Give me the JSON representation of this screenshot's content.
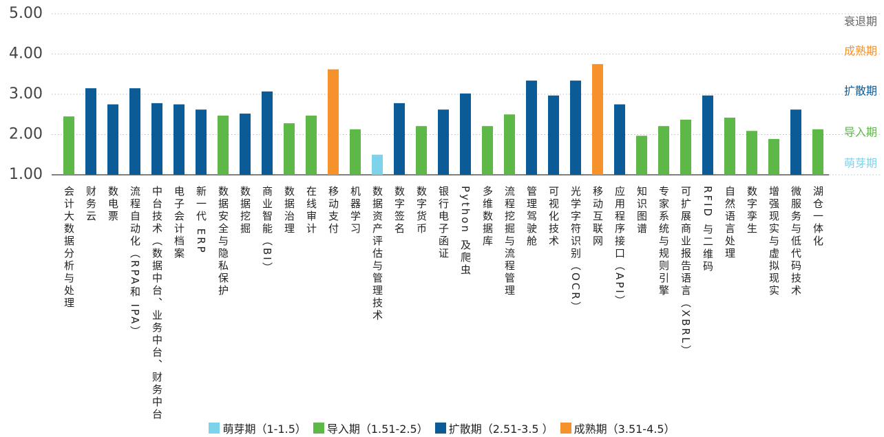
{
  "chart_data": {
    "type": "bar",
    "categories": [
      "会计大数据分析与处理",
      "财务云",
      "数电票",
      "流程自动化（RPA和 IPA）",
      "中台技术（数据中台、业务中台、财务中台）",
      "电子会计档案",
      "新一代 ERP",
      "数据安全与隐私保护",
      "数据挖掘",
      "商业智能（BI）",
      "数据治理",
      "在线审计",
      "移动支付",
      "机器学习",
      "数据资产评估与管理技术",
      "数字签名",
      "数字货币",
      "银行电子函证",
      "Python 及爬虫",
      "多维数据库",
      "流程挖掘与流程管理",
      "管理驾驶舱",
      "可视化技术",
      "光学字符识别（OCR）",
      "移动互联网",
      "应用程序接口（API）",
      "知识图谱",
      "专家系统与规则引擎",
      "可扩展商业报告语言（XBRL）",
      "RFID 与二维码",
      "自然语言处理",
      "数字孪生",
      "增强现实与虚拟现实",
      "微服务与低代码技术",
      "湖仓一体化"
    ],
    "series": [
      {
        "name": "萌芽期（1-1.5）",
        "color": "#7dd3ea",
        "values": [
          null,
          null,
          null,
          null,
          null,
          null,
          null,
          null,
          null,
          null,
          null,
          null,
          null,
          null,
          1.5,
          null,
          null,
          null,
          null,
          null,
          null,
          null,
          null,
          null,
          null,
          null,
          null,
          null,
          null,
          null,
          null,
          null,
          null,
          null,
          null
        ]
      },
      {
        "name": "导入期（1.51-2.5）",
        "color": "#5db847",
        "values": [
          2.45,
          null,
          null,
          null,
          null,
          null,
          null,
          2.47,
          null,
          null,
          2.28,
          2.47,
          null,
          2.13,
          null,
          null,
          2.21,
          null,
          null,
          2.21,
          2.5,
          null,
          null,
          null,
          null,
          null,
          1.97,
          2.21,
          2.37,
          null,
          2.42,
          2.09,
          1.89,
          null,
          2.13
        ]
      },
      {
        "name": "扩散期（2.51-3.5 ）",
        "color": "#0b5b97",
        "values": [
          null,
          3.15,
          2.75,
          3.15,
          2.78,
          2.75,
          2.62,
          null,
          2.52,
          3.07,
          null,
          null,
          null,
          null,
          null,
          2.78,
          null,
          2.62,
          3.02,
          null,
          null,
          3.34,
          2.97,
          3.34,
          null,
          2.75,
          null,
          null,
          null,
          2.97,
          null,
          null,
          null,
          2.62,
          null
        ]
      },
      {
        "name": "成熟期（3.51-4.5）",
        "color": "#f5922b",
        "values": [
          null,
          null,
          null,
          null,
          null,
          null,
          null,
          null,
          null,
          null,
          null,
          null,
          3.62,
          null,
          null,
          null,
          null,
          null,
          null,
          null,
          null,
          null,
          null,
          null,
          3.75,
          null,
          null,
          null,
          null,
          null,
          null,
          null,
          null,
          null,
          null
        ]
      }
    ],
    "ylim": [
      1,
      5
    ],
    "yticks": [
      {
        "value": 1,
        "label": "1.00"
      },
      {
        "value": 2,
        "label": "2.00"
      },
      {
        "value": 3,
        "label": "3.00"
      },
      {
        "value": 4,
        "label": "4.00"
      },
      {
        "value": 5,
        "label": "5.00"
      }
    ],
    "grid": true,
    "annotations": [
      {
        "text": "衰退期",
        "color": "#666666"
      },
      {
        "text": "成熟期",
        "color": "#f5922b"
      },
      {
        "text": "扩散期",
        "color": "#0b5b97"
      },
      {
        "text": "导入期",
        "color": "#5db847"
      },
      {
        "text": "萌芽期",
        "color": "#7dd3ea"
      }
    ]
  }
}
